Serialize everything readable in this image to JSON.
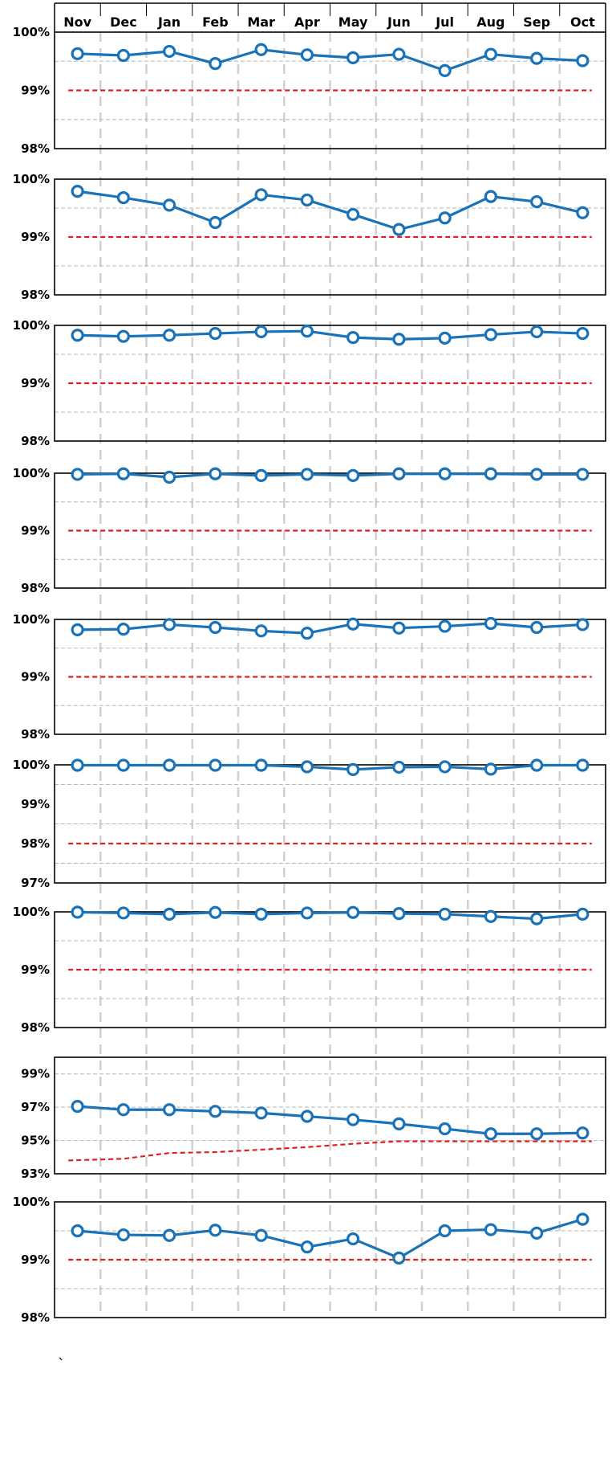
{
  "months": [
    "Nov",
    "Dec",
    "Jan",
    "Feb",
    "Mar",
    "Apr",
    "May",
    "Jun",
    "Jul",
    "Aug",
    "Sep",
    "Oct"
  ],
  "colors": {
    "series": "#1a72b8",
    "target": "#e02020",
    "grid": "#b5b5b5",
    "frame": "#000000",
    "divider": "#d0d0d0"
  },
  "footnote": "`",
  "chart_data": [
    {
      "type": "line",
      "ylim": [
        98,
        100
      ],
      "yticks": [
        "100%",
        "99%",
        "98%"
      ],
      "tick_values": [
        100,
        99,
        98
      ],
      "minor_grid": [
        99.5,
        98.5
      ],
      "values": [
        99.63,
        99.6,
        99.67,
        99.46,
        99.7,
        99.61,
        99.56,
        99.62,
        99.34,
        99.62,
        99.55,
        99.51
      ],
      "target": [
        99,
        99,
        99,
        99,
        99,
        99,
        99,
        99,
        99,
        99,
        99,
        99
      ]
    },
    {
      "type": "line",
      "ylim": [
        98,
        100
      ],
      "yticks": [
        "100%",
        "99%",
        "98%"
      ],
      "tick_values": [
        100,
        99,
        98
      ],
      "minor_grid": [
        99.5,
        98.5
      ],
      "values": [
        99.79,
        99.68,
        99.55,
        99.25,
        99.73,
        99.64,
        99.39,
        99.13,
        99.33,
        99.7,
        99.61,
        99.42
      ],
      "target": [
        99,
        99,
        99,
        99,
        99,
        99,
        99,
        99,
        99,
        99,
        99,
        99
      ]
    },
    {
      "type": "line",
      "ylim": [
        98,
        100
      ],
      "yticks": [
        "100%",
        "99%",
        "98%"
      ],
      "tick_values": [
        100,
        99,
        98
      ],
      "minor_grid": [
        99.5,
        98.5
      ],
      "values": [
        99.83,
        99.81,
        99.83,
        99.86,
        99.89,
        99.9,
        99.79,
        99.76,
        99.78,
        99.84,
        99.89,
        99.86
      ],
      "target": [
        99,
        99,
        99,
        99,
        99,
        99,
        99,
        99,
        99,
        99,
        99,
        99
      ]
    },
    {
      "type": "line",
      "ylim": [
        98,
        100
      ],
      "yticks": [
        "100%",
        "99%",
        "98%"
      ],
      "tick_values": [
        100,
        99,
        98
      ],
      "minor_grid": [
        99.5,
        98.5
      ],
      "values": [
        99.98,
        99.99,
        99.93,
        99.99,
        99.96,
        99.98,
        99.96,
        99.99,
        99.99,
        99.99,
        99.98,
        99.98
      ],
      "target": [
        99,
        99,
        99,
        99,
        99,
        99,
        99,
        99,
        99,
        99,
        99,
        99
      ]
    },
    {
      "type": "line",
      "ylim": [
        98,
        100
      ],
      "yticks": [
        "100%",
        "99%",
        "98%"
      ],
      "tick_values": [
        100,
        99,
        98
      ],
      "minor_grid": [
        99.5,
        98.5
      ],
      "values": [
        99.82,
        99.83,
        99.91,
        99.86,
        99.8,
        99.76,
        99.92,
        99.85,
        99.88,
        99.93,
        99.86,
        99.91
      ],
      "target": [
        99,
        99,
        99,
        99,
        99,
        99,
        99,
        99,
        99,
        99,
        99,
        99
      ]
    },
    {
      "type": "line",
      "ylim": [
        97,
        100
      ],
      "yticks": [
        "100%",
        "99%",
        "98%",
        "97%"
      ],
      "tick_values": [
        100,
        99,
        98,
        97
      ],
      "minor_grid": [
        99.5,
        98.5,
        97.5
      ],
      "values": [
        99.99,
        99.99,
        99.99,
        99.99,
        99.99,
        99.95,
        99.88,
        99.94,
        99.95,
        99.89,
        99.99,
        99.99
      ],
      "target": [
        98,
        98,
        98,
        98,
        98,
        98,
        98,
        98,
        98,
        98,
        98,
        98
      ]
    },
    {
      "type": "line",
      "ylim": [
        98,
        100
      ],
      "yticks": [
        "100%",
        "99%",
        "98%"
      ],
      "tick_values": [
        100,
        99,
        98
      ],
      "minor_grid": [
        99.5,
        98.5
      ],
      "values": [
        99.995,
        99.98,
        99.96,
        99.99,
        99.96,
        99.98,
        99.99,
        99.97,
        99.96,
        99.92,
        99.88,
        99.96
      ],
      "target": [
        99,
        99,
        99,
        99,
        99,
        99,
        99,
        99,
        99,
        99,
        99,
        99
      ]
    },
    {
      "type": "line",
      "ylim": [
        93,
        100
      ],
      "yticks": [
        "99%",
        "97%",
        "95%",
        "93%"
      ],
      "tick_values": [
        99,
        97,
        95,
        93
      ],
      "minor_grid": [],
      "values": [
        97.05,
        96.85,
        96.85,
        96.75,
        96.65,
        96.45,
        96.25,
        96.0,
        95.7,
        95.4,
        95.4,
        95.45
      ],
      "target": [
        93.8,
        93.9,
        94.25,
        94.3,
        94.45,
        94.6,
        94.8,
        94.95,
        94.95,
        94.95,
        94.95,
        94.95
      ]
    },
    {
      "type": "line",
      "ylim": [
        98,
        100
      ],
      "yticks": [
        "100%",
        "99%",
        "98%"
      ],
      "tick_values": [
        100,
        99,
        98
      ],
      "minor_grid": [
        99.5,
        98.5
      ],
      "values": [
        99.5,
        99.43,
        99.42,
        99.51,
        99.42,
        99.22,
        99.36,
        99.03,
        99.5,
        99.52,
        99.46,
        99.7
      ],
      "target": [
        99,
        99,
        99,
        99,
        99,
        99,
        99,
        99,
        99,
        99,
        99,
        99
      ]
    }
  ]
}
